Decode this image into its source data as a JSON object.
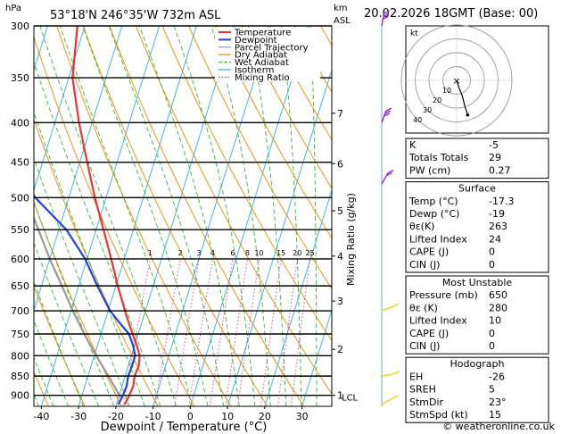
{
  "header": {
    "location": "53°18'N 246°35'W 732m ASL",
    "datetime": "20.02.2026 18GMT (Base: 00)"
  },
  "chart_data": {
    "type": "line",
    "title": "",
    "xlabel": "Dewpoint / Temperature (°C)",
    "ylabel": "hPa",
    "xlim": [
      -42,
      38
    ],
    "ylim": [
      930,
      300
    ],
    "y_scale": "log",
    "skew_per_ln_p": 28,
    "x_ticks": [
      -40,
      -30,
      -20,
      -10,
      0,
      10,
      20,
      30
    ],
    "pressure_levels": [
      300,
      350,
      400,
      450,
      500,
      550,
      600,
      650,
      700,
      750,
      800,
      850,
      900
    ],
    "right_axis": {
      "label_top": "km",
      "label_sub": "ASL",
      "ticks": [
        {
          "p": 389,
          "label": "7"
        },
        {
          "p": 452,
          "label": "6"
        },
        {
          "p": 520,
          "label": "5"
        },
        {
          "p": 595,
          "label": "4"
        },
        {
          "p": 680,
          "label": "3"
        },
        {
          "p": 785,
          "label": "2"
        },
        {
          "p": 900,
          "label": "1"
        }
      ],
      "lcl_label": "LCL",
      "lcl_p": 905
    },
    "mixing_ratio_axis_label": "Mixing Ratio (g/kg)",
    "mixing_ratio_labels": [
      "1",
      "2",
      "3",
      "4",
      "6",
      "8",
      "10",
      "15",
      "20",
      "25"
    ],
    "mixing_ratio_values": [
      1,
      2,
      3,
      4,
      6,
      8,
      10,
      15,
      20,
      25
    ],
    "mixing_ratio_label_p": 600,
    "legend": {
      "placement": "top-right",
      "entries": [
        {
          "name": "Temperature",
          "color": "#ee3333",
          "style": "solid"
        },
        {
          "name": "Dewpoint",
          "color": "#2244dd",
          "style": "solid"
        },
        {
          "name": "Parcel Trajectory",
          "color": "#999999",
          "style": "solid"
        },
        {
          "name": "Dry Adiabat",
          "color": "#ee8800",
          "style": "solid"
        },
        {
          "name": "Wet Adiabat",
          "color": "#33bb33",
          "style": "dashed"
        },
        {
          "name": "Isotherm",
          "color": "#33aaee",
          "style": "solid"
        },
        {
          "name": "Mixing Ratio",
          "color": "#dd33aa",
          "style": "dotted"
        }
      ]
    },
    "series": [
      {
        "name": "Temperature",
        "color": "#ee3333",
        "points": [
          [
            925,
            -17.8
          ],
          [
            900,
            -17.3
          ],
          [
            875,
            -17.0
          ],
          [
            850,
            -17.5
          ],
          [
            825,
            -17.2
          ],
          [
            800,
            -17.8
          ],
          [
            775,
            -19.5
          ],
          [
            750,
            -21.5
          ],
          [
            725,
            -23.5
          ],
          [
            700,
            -25.5
          ],
          [
            650,
            -29.5
          ],
          [
            600,
            -33.5
          ],
          [
            550,
            -38.0
          ],
          [
            500,
            -43.0
          ],
          [
            450,
            -48.0
          ],
          [
            400,
            -53.5
          ],
          [
            350,
            -59.0
          ],
          [
            300,
            -62.0
          ]
        ]
      },
      {
        "name": "Dewpoint",
        "color": "#2244dd",
        "points": [
          [
            925,
            -19.5
          ],
          [
            900,
            -19.0
          ],
          [
            875,
            -18.8
          ],
          [
            850,
            -19.2
          ],
          [
            825,
            -19.0
          ],
          [
            800,
            -19.0
          ],
          [
            775,
            -20.5
          ],
          [
            750,
            -22.5
          ],
          [
            725,
            -26.0
          ],
          [
            700,
            -29.5
          ],
          [
            650,
            -35.0
          ],
          [
            600,
            -40.5
          ],
          [
            550,
            -48.0
          ],
          [
            500,
            -59.0
          ],
          [
            450,
            -68.0
          ],
          [
            400,
            -71.0
          ],
          [
            350,
            -75.0
          ],
          [
            300,
            -77.0
          ]
        ]
      },
      {
        "name": "Parcel Trajectory",
        "color": "#999999",
        "points": [
          [
            905,
            -19.5
          ],
          [
            850,
            -24.5
          ],
          [
            800,
            -29.5
          ],
          [
            750,
            -34.5
          ],
          [
            700,
            -39.5
          ],
          [
            650,
            -44.5
          ],
          [
            600,
            -50.0
          ],
          [
            550,
            -55.5
          ],
          [
            500,
            -61.5
          ],
          [
            450,
            -68.0
          ]
        ]
      }
    ],
    "hodograph": {
      "unit_label": "kt",
      "ring_labels": [
        "10",
        "20",
        "30",
        "40"
      ],
      "trace_kt": [
        [
          0,
          0
        ],
        [
          1,
          -3
        ],
        [
          2,
          -6
        ],
        [
          4,
          -11
        ],
        [
          5,
          -15
        ],
        [
          6,
          -19
        ],
        [
          7,
          -22
        ],
        [
          8,
          -25
        ]
      ]
    },
    "wind_barbs": [
      {
        "p": 300,
        "dir": 190,
        "kt": 30
      },
      {
        "p": 400,
        "dir": 200,
        "kt": 25
      },
      {
        "p": 480,
        "dir": 210,
        "kt": 20
      },
      {
        "p": 700,
        "dir": 250,
        "kt": 10
      },
      {
        "p": 850,
        "dir": 260,
        "kt": 8
      },
      {
        "p": 925,
        "dir": 240,
        "kt": 10
      }
    ]
  },
  "indices": {
    "top": [
      {
        "label": "K",
        "value": "-5"
      },
      {
        "label": "Totals Totals",
        "value": "29"
      },
      {
        "label": "PW (cm)",
        "value": "0.27"
      }
    ],
    "surface": {
      "title": "Surface",
      "rows": [
        {
          "label": "Temp (°C)",
          "value": "-17.3"
        },
        {
          "label": "Dewp (°C)",
          "value": "-19"
        },
        {
          "label": "θε(K)",
          "value": "263"
        },
        {
          "label": "Lifted Index",
          "value": "24"
        },
        {
          "label": "CAPE (J)",
          "value": "0"
        },
        {
          "label": "CIN (J)",
          "value": "0"
        }
      ]
    },
    "most_unstable": {
      "title": "Most Unstable",
      "rows": [
        {
          "label": "Pressure (mb)",
          "value": "650"
        },
        {
          "label": "θε (K)",
          "value": "280"
        },
        {
          "label": "Lifted Index",
          "value": "10"
        },
        {
          "label": "CAPE (J)",
          "value": "0"
        },
        {
          "label": "CIN (J)",
          "value": "0"
        }
      ]
    },
    "hodograph": {
      "title": "Hodograph",
      "rows": [
        {
          "label": "EH",
          "value": "-26"
        },
        {
          "label": "SREH",
          "value": "5"
        },
        {
          "label": "StmDir",
          "value": "23°"
        },
        {
          "label": "StmSpd (kt)",
          "value": "15"
        }
      ]
    }
  },
  "footer": {
    "copyright": "© weatheronline.co.uk"
  }
}
